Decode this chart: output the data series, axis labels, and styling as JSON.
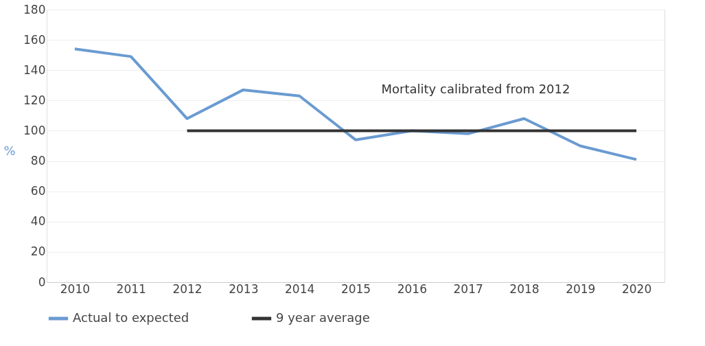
{
  "chart_data": {
    "type": "line",
    "ylabel": "%",
    "categories": [
      "2010",
      "2011",
      "2012",
      "2013",
      "2014",
      "2015",
      "2016",
      "2017",
      "2018",
      "2019",
      "2020"
    ],
    "series": [
      {
        "name": "Actual to expected",
        "color": "#6a9bd1",
        "values": [
          154,
          149,
          108,
          127,
          123,
          94,
          100,
          98,
          108,
          90,
          81
        ]
      },
      {
        "name": "9 year average",
        "color": "#333333",
        "values": [
          null,
          null,
          100,
          100,
          100,
          100,
          100,
          100,
          100,
          100,
          100
        ]
      }
    ],
    "ylim": [
      0,
      180
    ],
    "yticks": [
      0,
      20,
      40,
      60,
      80,
      100,
      120,
      140,
      160,
      180
    ],
    "grid": "y",
    "legend": "bottom",
    "marker": "none",
    "line_style": "solid",
    "annotations": [
      "Mortality calibrated from 2012"
    ]
  }
}
